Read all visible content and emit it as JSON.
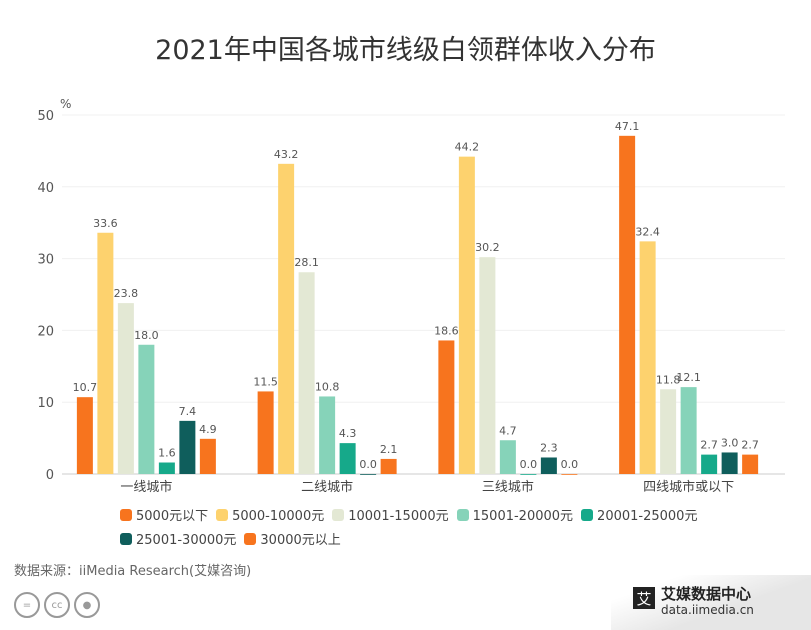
{
  "chart_data": {
    "type": "bar",
    "title": "2021年中国各城市线级白领群体收入分布",
    "ylabel": "%",
    "ylim": [
      0,
      50
    ],
    "yticks": [
      0,
      10,
      20,
      30,
      40,
      50
    ],
    "grid": true,
    "legend_placement": "bottom",
    "categories": [
      "一线城市",
      "二线城市",
      "三线城市",
      "四线城市或以下"
    ],
    "series": [
      {
        "name": "5000元以下",
        "color": "#F7741E",
        "values": [
          10.7,
          11.5,
          18.6,
          47.1
        ]
      },
      {
        "name": "5000-10000元",
        "color": "#FDD26E",
        "values": [
          33.6,
          43.2,
          44.2,
          32.4
        ]
      },
      {
        "name": "10001-15000元",
        "color": "#E3E8D4",
        "values": [
          23.8,
          28.1,
          30.2,
          11.8
        ]
      },
      {
        "name": "15001-20000元",
        "color": "#86D3B9",
        "values": [
          18.0,
          10.8,
          4.7,
          12.1
        ]
      },
      {
        "name": "20001-25000元",
        "color": "#16A98A",
        "values": [
          1.6,
          4.3,
          0.0,
          2.7
        ]
      },
      {
        "name": "25001-30000元",
        "color": "#0F5E5C",
        "values": [
          7.4,
          0.0,
          2.3,
          3.0
        ]
      },
      {
        "name": "30000元以上",
        "color": "#F7741E",
        "values": [
          4.9,
          2.1,
          0.0,
          2.7
        ]
      }
    ]
  },
  "source": "数据来源：iiMedia Research(艾媒咨询)",
  "logo": {
    "mark": "艾",
    "name": "艾媒数据中心",
    "url": "data.iimedia.cn"
  },
  "license_icons": [
    "=",
    "cc",
    "person"
  ]
}
